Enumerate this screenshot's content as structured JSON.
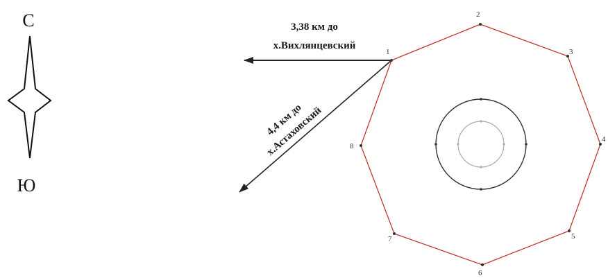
{
  "compass": {
    "north_label": "С",
    "south_label": "Ю"
  },
  "annotations": {
    "distance_1_line1": "3,38 км до",
    "distance_1_line2": "х.Вихлянцевский",
    "distance_2_line1": "4,4 км до",
    "distance_2_line2": "х.Астаховский"
  },
  "polygon": {
    "vertex_labels": [
      "1",
      "2",
      "3",
      "4",
      "5",
      "6",
      "7",
      "8"
    ]
  },
  "colors": {
    "polygon_stroke": "#c0392b",
    "arrow": "#222222",
    "outer_circle": "#333333",
    "inner_circle": "#aaaaaa"
  }
}
